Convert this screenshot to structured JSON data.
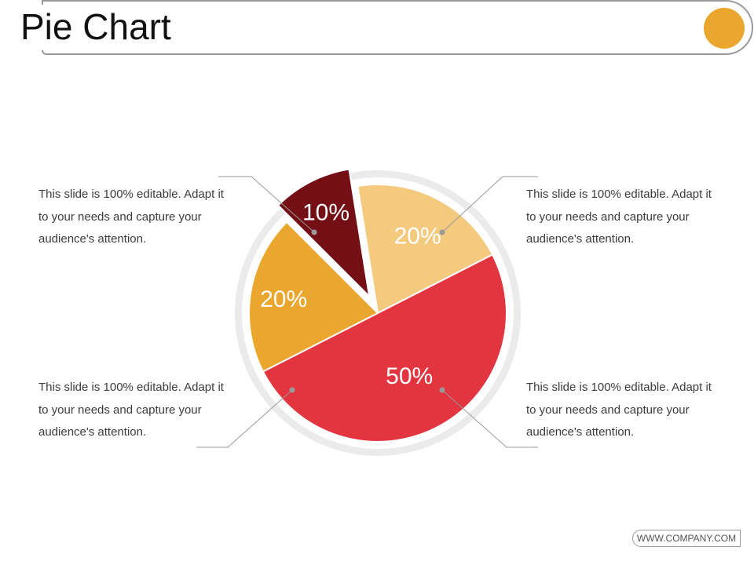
{
  "title": "Pie Chart",
  "accent_color": "#eba62d",
  "chart_data": {
    "type": "pie",
    "slices": [
      {
        "label": "10%",
        "value": 10,
        "color": "#730f15",
        "exploded": true
      },
      {
        "label": "20%",
        "value": 20,
        "color": "#f3ca7e",
        "exploded": false
      },
      {
        "label": "50%",
        "value": 50,
        "color": "#e23540",
        "exploded": false
      },
      {
        "label": "20%",
        "value": 20,
        "color": "#eba62d",
        "exploded": false
      }
    ]
  },
  "callouts": [
    {
      "text": "This slide is 100% editable. Adapt it to your needs and capture your audience's attention."
    },
    {
      "text": "This slide is 100% editable. Adapt it to your needs and capture your audience's attention."
    },
    {
      "text": "This slide is 100% editable. Adapt it to your needs and capture your audience's attention."
    },
    {
      "text": "This slide is 100% editable. Adapt it to your needs and capture your audience's attention."
    }
  ],
  "footer": {
    "url": "WWW.COMPANY.COM"
  }
}
